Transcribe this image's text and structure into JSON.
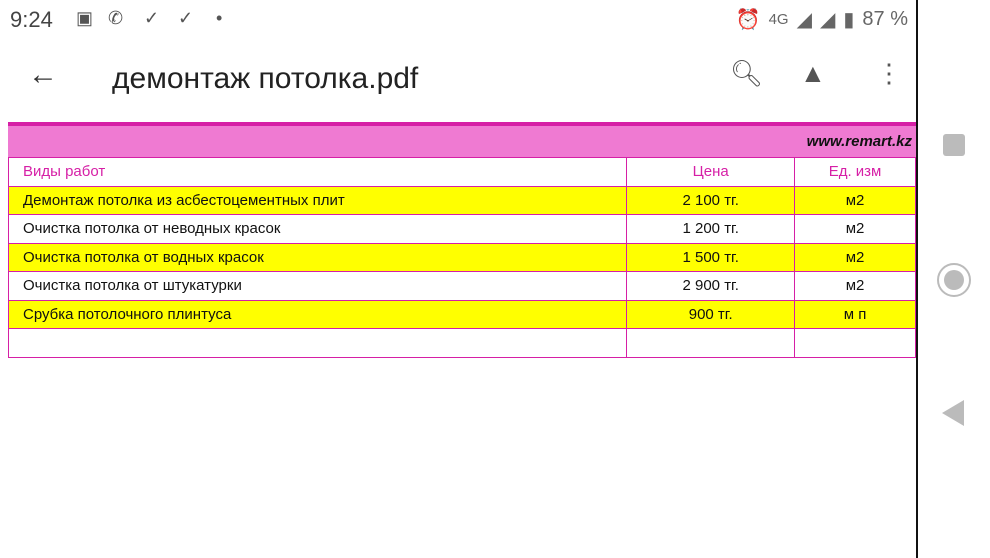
{
  "status": {
    "time": "9:24",
    "battery": "87 %",
    "network": "4G",
    "icons": [
      "image-icon",
      "whatsapp-icon",
      "check-icon",
      "check-icon",
      "dot-icon",
      "alarm-icon",
      "signal-icon",
      "signal-icon",
      "battery-icon"
    ]
  },
  "appbar": {
    "title": "демонтаж потолка.pdf"
  },
  "doc": {
    "site": "www.remart.kz",
    "headers": [
      "Виды работ",
      "Цена",
      "Ед. изм"
    ],
    "rows": [
      {
        "work": "Демонтаж потолка из асбестоцементных плит",
        "price": "2 100 тг.",
        "unit": "м2"
      },
      {
        "work": "Очистка потолка от неводных красок",
        "price": "1 200 тг.",
        "unit": "м2"
      },
      {
        "work": "Очистка потолка от водных красок",
        "price": "1 500 тг.",
        "unit": "м2"
      },
      {
        "work": "Очистка потолка от штукатурки",
        "price": "2 900 тг.",
        "unit": "м2"
      },
      {
        "work": "Срубка потолочного плинтуса",
        "price": "900 тг.",
        "unit": "м п"
      }
    ]
  },
  "colors": {
    "accent": "#d61fa6",
    "band": "#ef7ad2",
    "highlight": "#ffff00"
  }
}
